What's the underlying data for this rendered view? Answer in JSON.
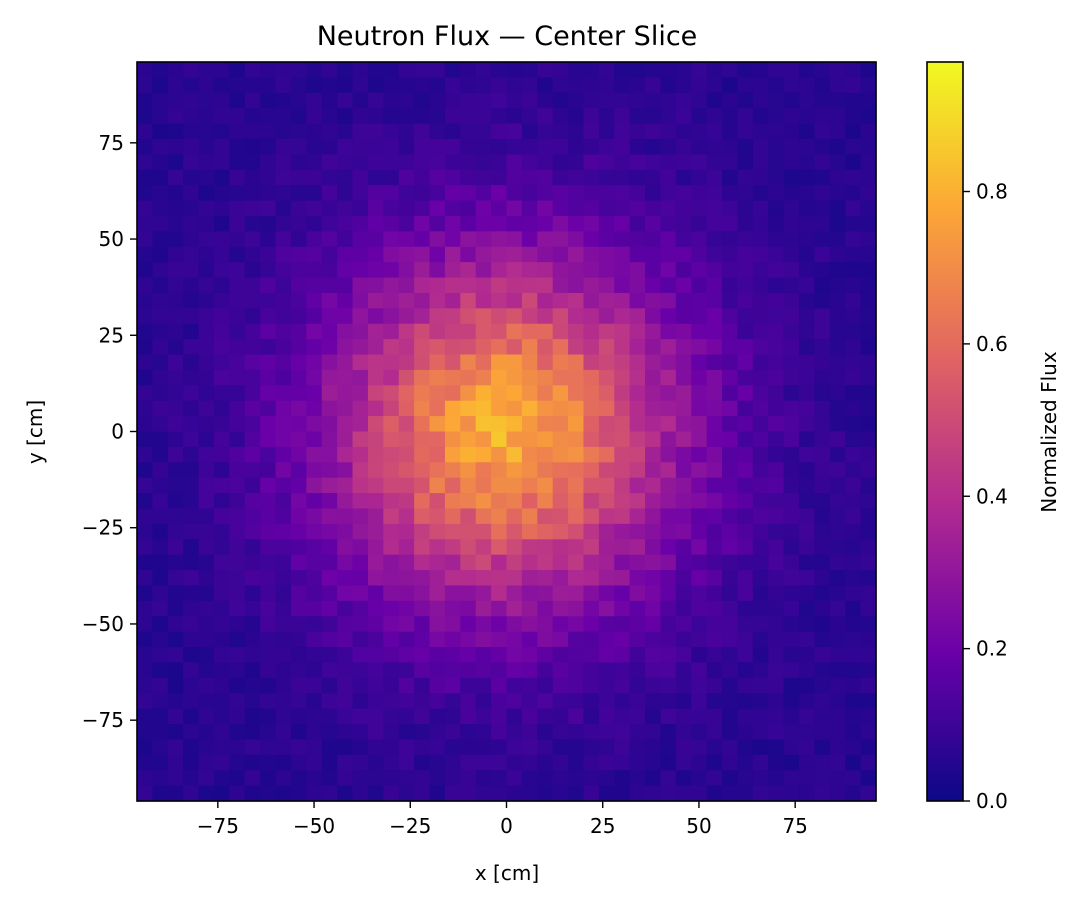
{
  "chart_data": {
    "type": "heatmap",
    "title": "Neutron Flux — Center Slice",
    "xlabel": "x [cm]",
    "ylabel": "y [cm]",
    "xlim": [
      -96,
      96
    ],
    "ylim": [
      -96,
      96
    ],
    "x_ticks": [
      -75,
      -50,
      -25,
      0,
      25,
      50,
      75
    ],
    "y_ticks": [
      -75,
      -50,
      -25,
      0,
      25,
      50,
      75
    ],
    "x_tick_labels": [
      "−75",
      "−50",
      "−25",
      "0",
      "25",
      "50",
      "75"
    ],
    "y_tick_labels": [
      "−75",
      "−50",
      "−25",
      "0",
      "25",
      "50",
      "75"
    ],
    "grid": false,
    "colormap": "plasma",
    "colormap_stops": [
      "#0d0887",
      "#6a00a8",
      "#b12a90",
      "#e16462",
      "#fca636",
      "#f0f921"
    ],
    "colorbar": {
      "label": "Normalized Flux",
      "range": [
        0,
        0.97
      ],
      "ticks": [
        0.0,
        0.2,
        0.4,
        0.6,
        0.8
      ],
      "tick_labels": [
        "0.0",
        "0.2",
        "0.4",
        "0.6",
        "0.8"
      ]
    },
    "grid_size": [
      48,
      48
    ],
    "field": {
      "form": "gaussian",
      "center": [
        0,
        0
      ],
      "peak": 0.93,
      "sigma_cm": 37,
      "background": 0.07
    }
  }
}
